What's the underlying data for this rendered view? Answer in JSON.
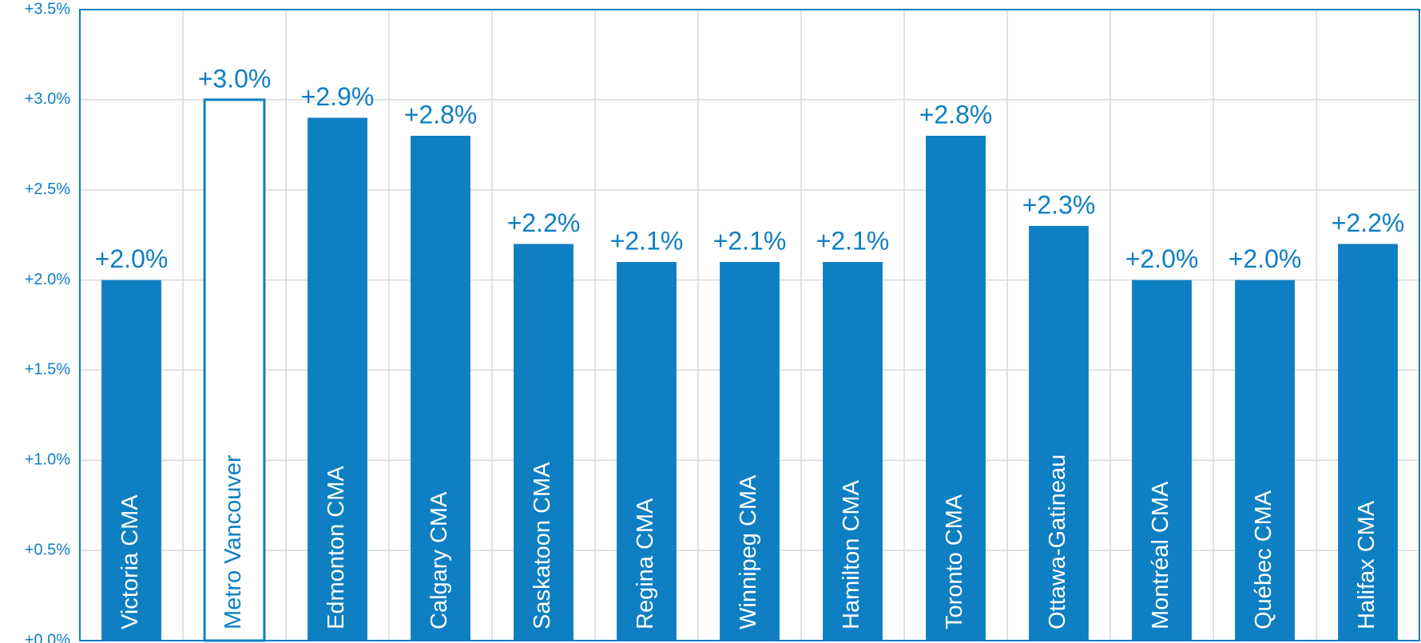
{
  "chart_data": {
    "type": "bar",
    "categories": [
      "Victoria CMA",
      "Metro Vancouver",
      "Edmonton CMA",
      "Calgary CMA",
      "Saskatoon CMA",
      "Regina CMA",
      "Winnipeg CMA",
      "Hamilton CMA",
      "Toronto CMA",
      "Ottawa-Gatineau",
      "Montréal CMA",
      "Québec CMA",
      "Halifax CMA"
    ],
    "values": [
      2.0,
      3.0,
      2.9,
      2.8,
      2.2,
      2.1,
      2.1,
      2.1,
      2.8,
      2.3,
      2.0,
      2.0,
      2.2
    ],
    "value_labels": [
      "+2.0%",
      "+3.0%",
      "+2.9%",
      "+2.8%",
      "+2.2%",
      "+2.1%",
      "+2.1%",
      "+2.1%",
      "+2.8%",
      "+2.3%",
      "+2.0%",
      "+2.0%",
      "+2.2%"
    ],
    "color": "#0e7fc3",
    "outlined_category": "Metro Vancouver",
    "ylim": [
      0,
      3.5
    ],
    "yticks": [
      {
        "value": 0,
        "label": "+0.0%"
      },
      {
        "value": 0.5,
        "label": "+0.5%"
      },
      {
        "value": 1.0,
        "label": "+1.0%"
      },
      {
        "value": 1.5,
        "label": "+1.5%"
      },
      {
        "value": 2.0,
        "label": "+2.0%"
      },
      {
        "value": 2.5,
        "label": "+2.5%"
      },
      {
        "value": 3.0,
        "label": "+3.0%"
      },
      {
        "value": 3.5,
        "label": "+3.5%"
      }
    ],
    "grid": true
  }
}
